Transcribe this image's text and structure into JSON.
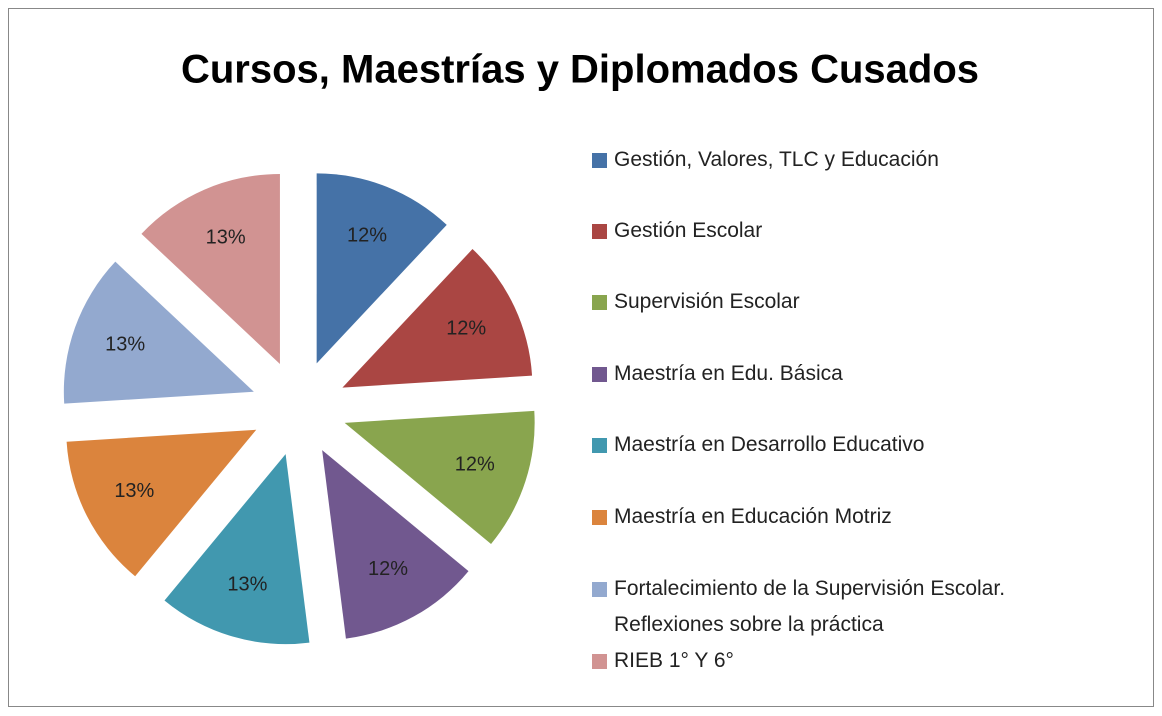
{
  "chart_data": {
    "type": "pie",
    "title": "Cursos, Maestrías y Diplomados Cusados",
    "categories": [
      "Gestión, Valores, TLC y Educación",
      "Gestión Escolar",
      "Supervisión Escolar",
      "Maestría en Edu. Básica",
      "Maestría en Desarrollo Educativo",
      "Maestría en Educación Motriz",
      "Fortalecimiento de la Supervisión Escolar. Reflexiones sobre la práctica",
      "RIEB 1° Y 6°"
    ],
    "values": [
      12,
      12,
      12,
      12,
      13,
      13,
      13,
      13
    ],
    "value_labels": [
      "12%",
      "12%",
      "12%",
      "12%",
      "13%",
      "13%",
      "13%",
      "13%"
    ],
    "colors": [
      "#4572a7",
      "#aa4643",
      "#89a54e",
      "#71588f",
      "#4198af",
      "#db843d",
      "#93a9cf",
      "#d19392"
    ],
    "legend": "right"
  }
}
